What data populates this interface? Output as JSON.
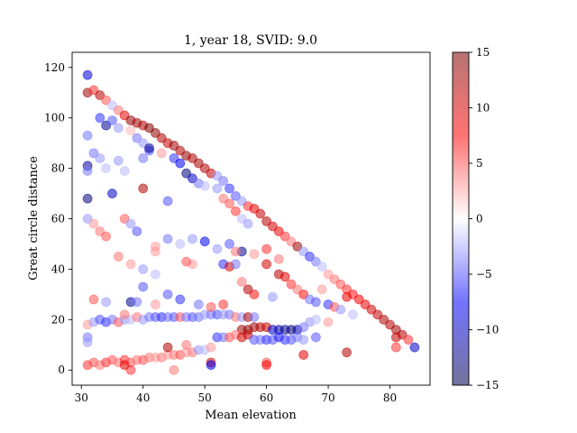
{
  "chart_data": {
    "type": "scatter",
    "title": "1, year 18, SVID: 9.0",
    "xlabel": "Mean elevation",
    "ylabel": "Great circle distance",
    "xlim": [
      28.5,
      86.5
    ],
    "ylim": [
      -6,
      126
    ],
    "xticks": [
      30,
      40,
      50,
      60,
      70,
      80
    ],
    "yticks": [
      0,
      20,
      40,
      60,
      80,
      100,
      120
    ],
    "grid": false,
    "colorbar": {
      "colormap": "seismic",
      "range": [
        -15,
        15
      ],
      "ticks": [
        -15,
        -10,
        -5,
        0,
        5,
        10,
        15
      ]
    },
    "points": [
      {
        "x": 31,
        "y": 117,
        "v": -9
      },
      {
        "x": 31,
        "y": 110,
        "v": 13
      },
      {
        "x": 32,
        "y": 111,
        "v": 6
      },
      {
        "x": 33,
        "y": 109,
        "v": 12
      },
      {
        "x": 34,
        "y": 107,
        "v": 5
      },
      {
        "x": 35,
        "y": 105,
        "v": -2
      },
      {
        "x": 36,
        "y": 103,
        "v": 4
      },
      {
        "x": 37,
        "y": 101,
        "v": 9
      },
      {
        "x": 38,
        "y": 99,
        "v": 14
      },
      {
        "x": 39,
        "y": 98,
        "v": 13
      },
      {
        "x": 40,
        "y": 97,
        "v": 12
      },
      {
        "x": 41,
        "y": 96,
        "v": 15
      },
      {
        "x": 42,
        "y": 94,
        "v": 14
      },
      {
        "x": 43,
        "y": 92,
        "v": 12
      },
      {
        "x": 44,
        "y": 90,
        "v": 11
      },
      {
        "x": 45,
        "y": 89,
        "v": 13
      },
      {
        "x": 46,
        "y": 87,
        "v": 12
      },
      {
        "x": 47,
        "y": 85,
        "v": 14
      },
      {
        "x": 48,
        "y": 84,
        "v": 12
      },
      {
        "x": 49,
        "y": 82,
        "v": 13
      },
      {
        "x": 50,
        "y": 80,
        "v": 12
      },
      {
        "x": 51,
        "y": 78,
        "v": 11
      },
      {
        "x": 52,
        "y": 77,
        "v": -3
      },
      {
        "x": 53,
        "y": 75,
        "v": -4
      },
      {
        "x": 54,
        "y": 72,
        "v": -6
      },
      {
        "x": 55,
        "y": 69,
        "v": -5
      },
      {
        "x": 56,
        "y": 67,
        "v": -3
      },
      {
        "x": 57,
        "y": 65,
        "v": 6
      },
      {
        "x": 58,
        "y": 64,
        "v": 9
      },
      {
        "x": 59,
        "y": 62,
        "v": 11
      },
      {
        "x": 60,
        "y": 59,
        "v": 12
      },
      {
        "x": 61,
        "y": 57,
        "v": 10
      },
      {
        "x": 62,
        "y": 55,
        "v": 9
      },
      {
        "x": 63,
        "y": 53,
        "v": 6
      },
      {
        "x": 64,
        "y": 51,
        "v": 4
      },
      {
        "x": 65,
        "y": 49,
        "v": 13
      },
      {
        "x": 66,
        "y": 47,
        "v": -3
      },
      {
        "x": 67,
        "y": 45,
        "v": -6
      },
      {
        "x": 68,
        "y": 43,
        "v": -4
      },
      {
        "x": 69,
        "y": 41,
        "v": -2
      },
      {
        "x": 70,
        "y": 38,
        "v": 3
      },
      {
        "x": 71,
        "y": 36,
        "v": 4
      },
      {
        "x": 72,
        "y": 34,
        "v": 5
      },
      {
        "x": 73,
        "y": 32,
        "v": 6
      },
      {
        "x": 74,
        "y": 30,
        "v": 7
      },
      {
        "x": 75,
        "y": 28,
        "v": 8
      },
      {
        "x": 76,
        "y": 26,
        "v": 9
      },
      {
        "x": 77,
        "y": 24,
        "v": 10
      },
      {
        "x": 78,
        "y": 22,
        "v": 11
      },
      {
        "x": 79,
        "y": 20,
        "v": 12
      },
      {
        "x": 80,
        "y": 18,
        "v": 12
      },
      {
        "x": 81,
        "y": 16,
        "v": 13
      },
      {
        "x": 82,
        "y": 14,
        "v": 12
      },
      {
        "x": 83,
        "y": 12,
        "v": 6
      },
      {
        "x": 84,
        "y": 9,
        "v": -10
      },
      {
        "x": 33,
        "y": 100,
        "v": -6
      },
      {
        "x": 34,
        "y": 97,
        "v": -12
      },
      {
        "x": 35,
        "y": 99,
        "v": -5
      },
      {
        "x": 36,
        "y": 96,
        "v": -3
      },
      {
        "x": 38,
        "y": 95,
        "v": 2
      },
      {
        "x": 39,
        "y": 92,
        "v": -4
      },
      {
        "x": 40,
        "y": 90,
        "v": -3
      },
      {
        "x": 41,
        "y": 87,
        "v": -5
      },
      {
        "x": 41,
        "y": 88,
        "v": -12
      },
      {
        "x": 43,
        "y": 86,
        "v": 3
      },
      {
        "x": 45,
        "y": 84,
        "v": -6
      },
      {
        "x": 46,
        "y": 82,
        "v": -8
      },
      {
        "x": 47,
        "y": 78,
        "v": -13
      },
      {
        "x": 48,
        "y": 76,
        "v": -10
      },
      {
        "x": 49,
        "y": 74,
        "v": -4
      },
      {
        "x": 50,
        "y": 73,
        "v": -2
      },
      {
        "x": 52,
        "y": 72,
        "v": -3
      },
      {
        "x": 53,
        "y": 68,
        "v": 4
      },
      {
        "x": 54,
        "y": 66,
        "v": 5
      },
      {
        "x": 55,
        "y": 63,
        "v": 6
      },
      {
        "x": 56,
        "y": 60,
        "v": -2
      },
      {
        "x": 57,
        "y": 58,
        "v": -3
      },
      {
        "x": 31,
        "y": 93,
        "v": -4
      },
      {
        "x": 31,
        "y": 81,
        "v": -12
      },
      {
        "x": 31,
        "y": 79,
        "v": -4
      },
      {
        "x": 31,
        "y": 68,
        "v": -13
      },
      {
        "x": 31,
        "y": 60,
        "v": -3
      },
      {
        "x": 32,
        "y": 86,
        "v": -4
      },
      {
        "x": 33,
        "y": 84,
        "v": -3
      },
      {
        "x": 34,
        "y": 80,
        "v": -2
      },
      {
        "x": 35,
        "y": 70,
        "v": -10
      },
      {
        "x": 36,
        "y": 83,
        "v": -3
      },
      {
        "x": 37,
        "y": 79,
        "v": -2
      },
      {
        "x": 40,
        "y": 72,
        "v": 12
      },
      {
        "x": 40,
        "y": 84,
        "v": -4
      },
      {
        "x": 44,
        "y": 67,
        "v": -5
      },
      {
        "x": 32,
        "y": 58,
        "v": 3
      },
      {
        "x": 33,
        "y": 55,
        "v": 4
      },
      {
        "x": 34,
        "y": 53,
        "v": 5
      },
      {
        "x": 37,
        "y": 60,
        "v": 5
      },
      {
        "x": 38,
        "y": 58,
        "v": -3
      },
      {
        "x": 39,
        "y": 55,
        "v": -5
      },
      {
        "x": 42,
        "y": 49,
        "v": 3
      },
      {
        "x": 44,
        "y": 52,
        "v": -4
      },
      {
        "x": 46,
        "y": 50,
        "v": -2
      },
      {
        "x": 48,
        "y": 52,
        "v": -3
      },
      {
        "x": 50,
        "y": 51,
        "v": -8
      },
      {
        "x": 52,
        "y": 48,
        "v": -3
      },
      {
        "x": 54,
        "y": 50,
        "v": -5
      },
      {
        "x": 56,
        "y": 47,
        "v": -12
      },
      {
        "x": 58,
        "y": 46,
        "v": 3
      },
      {
        "x": 60,
        "y": 48,
        "v": 6
      },
      {
        "x": 62,
        "y": 44,
        "v": 4
      },
      {
        "x": 36,
        "y": 45,
        "v": 4
      },
      {
        "x": 38,
        "y": 42,
        "v": 3
      },
      {
        "x": 40,
        "y": 40,
        "v": -3
      },
      {
        "x": 42,
        "y": 38,
        "v": -2
      },
      {
        "x": 44,
        "y": 30,
        "v": -5
      },
      {
        "x": 46,
        "y": 28,
        "v": -6
      },
      {
        "x": 48,
        "y": 42,
        "v": 3
      },
      {
        "x": 53,
        "y": 42,
        "v": -6
      },
      {
        "x": 54,
        "y": 41,
        "v": 10
      },
      {
        "x": 55,
        "y": 42,
        "v": -4
      },
      {
        "x": 56,
        "y": 35,
        "v": 4
      },
      {
        "x": 57,
        "y": 32,
        "v": 12
      },
      {
        "x": 58,
        "y": 30,
        "v": 7
      },
      {
        "x": 60,
        "y": 42,
        "v": 10
      },
      {
        "x": 61,
        "y": 29,
        "v": -3
      },
      {
        "x": 62,
        "y": 38,
        "v": 12
      },
      {
        "x": 63,
        "y": 37,
        "v": 9
      },
      {
        "x": 64,
        "y": 34,
        "v": 6
      },
      {
        "x": 65,
        "y": 32,
        "v": 4
      },
      {
        "x": 66,
        "y": 30,
        "v": 7
      },
      {
        "x": 67,
        "y": 28,
        "v": -4
      },
      {
        "x": 68,
        "y": 27,
        "v": -5
      },
      {
        "x": 69,
        "y": 32,
        "v": 3
      },
      {
        "x": 70,
        "y": 26,
        "v": -6
      },
      {
        "x": 71,
        "y": 25,
        "v": 5
      },
      {
        "x": 72,
        "y": 24,
        "v": -3
      },
      {
        "x": 73,
        "y": 29,
        "v": 9
      },
      {
        "x": 74,
        "y": 22,
        "v": -2
      },
      {
        "x": 31,
        "y": 18,
        "v": 3
      },
      {
        "x": 32,
        "y": 19,
        "v": -3
      },
      {
        "x": 33,
        "y": 20,
        "v": -5
      },
      {
        "x": 34,
        "y": 19,
        "v": -6
      },
      {
        "x": 35,
        "y": 20,
        "v": -4
      },
      {
        "x": 36,
        "y": 19,
        "v": 5
      },
      {
        "x": 37,
        "y": 20,
        "v": -3
      },
      {
        "x": 38,
        "y": 20,
        "v": -2
      },
      {
        "x": 39,
        "y": 21,
        "v": 4
      },
      {
        "x": 40,
        "y": 20,
        "v": -3
      },
      {
        "x": 41,
        "y": 21,
        "v": -4
      },
      {
        "x": 42,
        "y": 21,
        "v": -5
      },
      {
        "x": 43,
        "y": 21,
        "v": -6
      },
      {
        "x": 44,
        "y": 21,
        "v": -4
      },
      {
        "x": 45,
        "y": 21,
        "v": -5
      },
      {
        "x": 46,
        "y": 21,
        "v": 5
      },
      {
        "x": 47,
        "y": 21,
        "v": -4
      },
      {
        "x": 48,
        "y": 21,
        "v": -5
      },
      {
        "x": 49,
        "y": 21,
        "v": -4
      },
      {
        "x": 50,
        "y": 22,
        "v": -3
      },
      {
        "x": 51,
        "y": 22,
        "v": -4
      },
      {
        "x": 52,
        "y": 22,
        "v": -5
      },
      {
        "x": 53,
        "y": 22,
        "v": -3
      },
      {
        "x": 54,
        "y": 22,
        "v": -4
      },
      {
        "x": 55,
        "y": 21,
        "v": 4
      },
      {
        "x": 56,
        "y": 21,
        "v": -3
      },
      {
        "x": 57,
        "y": 21,
        "v": 12
      },
      {
        "x": 58,
        "y": 21,
        "v": -4
      },
      {
        "x": 56,
        "y": 16,
        "v": 13
      },
      {
        "x": 57,
        "y": 16,
        "v": 14
      },
      {
        "x": 58,
        "y": 17,
        "v": 13
      },
      {
        "x": 59,
        "y": 17,
        "v": 12
      },
      {
        "x": 60,
        "y": 17,
        "v": 11
      },
      {
        "x": 61,
        "y": 16,
        "v": -10
      },
      {
        "x": 62,
        "y": 16,
        "v": -11
      },
      {
        "x": 63,
        "y": 16,
        "v": -12
      },
      {
        "x": 64,
        "y": 16,
        "v": -13
      },
      {
        "x": 65,
        "y": 16,
        "v": -11
      },
      {
        "x": 66,
        "y": 17,
        "v": -4
      },
      {
        "x": 67,
        "y": 19,
        "v": -3
      },
      {
        "x": 68,
        "y": 20,
        "v": -2
      },
      {
        "x": 70,
        "y": 19,
        "v": 3
      },
      {
        "x": 52,
        "y": 13,
        "v": -6
      },
      {
        "x": 53,
        "y": 13,
        "v": -4
      },
      {
        "x": 54,
        "y": 13,
        "v": 5
      },
      {
        "x": 55,
        "y": 14,
        "v": 4
      },
      {
        "x": 56,
        "y": 13,
        "v": 10
      },
      {
        "x": 57,
        "y": 14,
        "v": 11
      },
      {
        "x": 58,
        "y": 12,
        "v": -5
      },
      {
        "x": 59,
        "y": 12,
        "v": -4
      },
      {
        "x": 60,
        "y": 12,
        "v": -6
      },
      {
        "x": 61,
        "y": 12,
        "v": -5
      },
      {
        "x": 62,
        "y": 13,
        "v": -7
      },
      {
        "x": 63,
        "y": 12,
        "v": -6
      },
      {
        "x": 64,
        "y": 12,
        "v": -5
      },
      {
        "x": 65,
        "y": 13,
        "v": -4
      },
      {
        "x": 66,
        "y": 12,
        "v": -3
      },
      {
        "x": 68,
        "y": 13,
        "v": -5
      },
      {
        "x": 31,
        "y": 2,
        "v": 6
      },
      {
        "x": 32,
        "y": 3,
        "v": 5
      },
      {
        "x": 33,
        "y": 2,
        "v": 4
      },
      {
        "x": 34,
        "y": 3,
        "v": 6
      },
      {
        "x": 35,
        "y": 4,
        "v": 5
      },
      {
        "x": 36,
        "y": 3,
        "v": 4
      },
      {
        "x": 37,
        "y": 4,
        "v": 6
      },
      {
        "x": 38,
        "y": 3,
        "v": 5
      },
      {
        "x": 39,
        "y": 4,
        "v": 4
      },
      {
        "x": 40,
        "y": 4,
        "v": 5
      },
      {
        "x": 41,
        "y": 5,
        "v": 4
      },
      {
        "x": 42,
        "y": 5,
        "v": 3
      },
      {
        "x": 43,
        "y": 5,
        "v": 4
      },
      {
        "x": 44,
        "y": 6,
        "v": 3
      },
      {
        "x": 45,
        "y": 6,
        "v": 4
      },
      {
        "x": 46,
        "y": 6,
        "v": 5
      },
      {
        "x": 47,
        "y": 7,
        "v": 3
      },
      {
        "x": 48,
        "y": 7,
        "v": 4
      },
      {
        "x": 49,
        "y": 8,
        "v": -3
      },
      {
        "x": 50,
        "y": 8,
        "v": -2
      },
      {
        "x": 51,
        "y": 9,
        "v": 3
      },
      {
        "x": 44,
        "y": 9,
        "v": 12
      },
      {
        "x": 47,
        "y": 10,
        "v": 4
      },
      {
        "x": 51,
        "y": 3,
        "v": 10
      },
      {
        "x": 51,
        "y": 2,
        "v": -8
      },
      {
        "x": 45,
        "y": 0,
        "v": 4
      },
      {
        "x": 60,
        "y": 3,
        "v": 5
      },
      {
        "x": 60,
        "y": 2,
        "v": 8
      },
      {
        "x": 66,
        "y": 6,
        "v": 9
      },
      {
        "x": 73,
        "y": 7,
        "v": 12
      },
      {
        "x": 81,
        "y": 13,
        "v": 11
      },
      {
        "x": 81,
        "y": 9,
        "v": 6
      },
      {
        "x": 38,
        "y": 0,
        "v": 6
      },
      {
        "x": 37,
        "y": 2,
        "v": 9
      },
      {
        "x": 47,
        "y": 43,
        "v": 5
      },
      {
        "x": 49,
        "y": 26,
        "v": -4
      },
      {
        "x": 51,
        "y": 25,
        "v": 5
      },
      {
        "x": 53,
        "y": 26,
        "v": 6
      },
      {
        "x": 38,
        "y": 27,
        "v": -12
      },
      {
        "x": 39,
        "y": 27,
        "v": -4
      },
      {
        "x": 42,
        "y": 26,
        "v": 3
      },
      {
        "x": 34,
        "y": 27,
        "v": -3
      },
      {
        "x": 32,
        "y": 28,
        "v": 5
      },
      {
        "x": 31,
        "y": 13,
        "v": -4
      },
      {
        "x": 31,
        "y": 11,
        "v": -3
      },
      {
        "x": 40,
        "y": 33,
        "v": -5
      },
      {
        "x": 37,
        "y": 22,
        "v": 4
      },
      {
        "x": 42,
        "y": 47,
        "v": 3
      },
      {
        "x": 55,
        "y": 47,
        "v": 4
      }
    ]
  }
}
